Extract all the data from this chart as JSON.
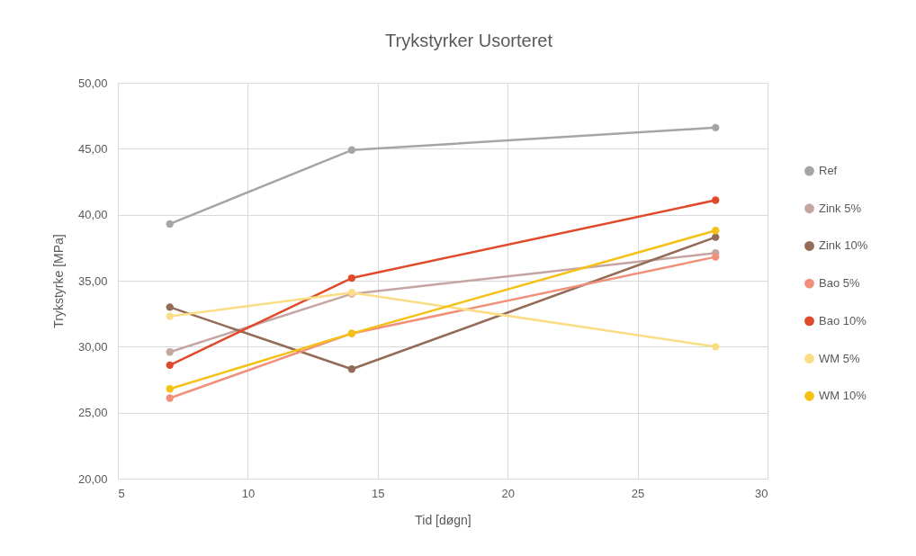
{
  "chart_data": {
    "type": "line",
    "title": "Trykstyrker Usorteret",
    "xlabel": "Tid [døgn]",
    "ylabel": "Trykstyrke [MPa]",
    "x": [
      7,
      14,
      28
    ],
    "series": [
      {
        "name": "Ref",
        "color": "#a5a5a5",
        "values": [
          39.3,
          44.9,
          46.6
        ]
      },
      {
        "name": "Zink 5%",
        "color": "#c5a5a2",
        "values": [
          29.6,
          34.0,
          37.1
        ]
      },
      {
        "name": "Zink 10%",
        "color": "#946b57",
        "values": [
          33.0,
          28.3,
          38.3
        ]
      },
      {
        "name": "Bao 5%",
        "color": "#f0907a",
        "values": [
          26.1,
          31.0,
          36.8
        ]
      },
      {
        "name": "Bao 10%",
        "color": "#e04a2a",
        "values": [
          28.6,
          35.2,
          41.1
        ]
      },
      {
        "name": "WM 5%",
        "color": "#fadd85",
        "values": [
          32.3,
          34.1,
          30.0
        ]
      },
      {
        "name": "WM 10%",
        "color": "#f5c116",
        "values": [
          26.8,
          31.0,
          38.8
        ]
      }
    ],
    "xlim": [
      5,
      30
    ],
    "xticks": [
      5,
      10,
      15,
      20,
      25,
      30
    ],
    "ylim": [
      20,
      50
    ],
    "yticks": [
      {
        "value": 20,
        "label": "20,00"
      },
      {
        "value": 25,
        "label": "25,00"
      },
      {
        "value": 30,
        "label": "30,00"
      },
      {
        "value": 35,
        "label": "35,00"
      },
      {
        "value": 40,
        "label": "40,00"
      },
      {
        "value": 45,
        "label": "45,00"
      },
      {
        "value": 50,
        "label": "50,00"
      }
    ],
    "grid": true,
    "legend": "right",
    "marker": "circle",
    "line_style": "solid"
  }
}
